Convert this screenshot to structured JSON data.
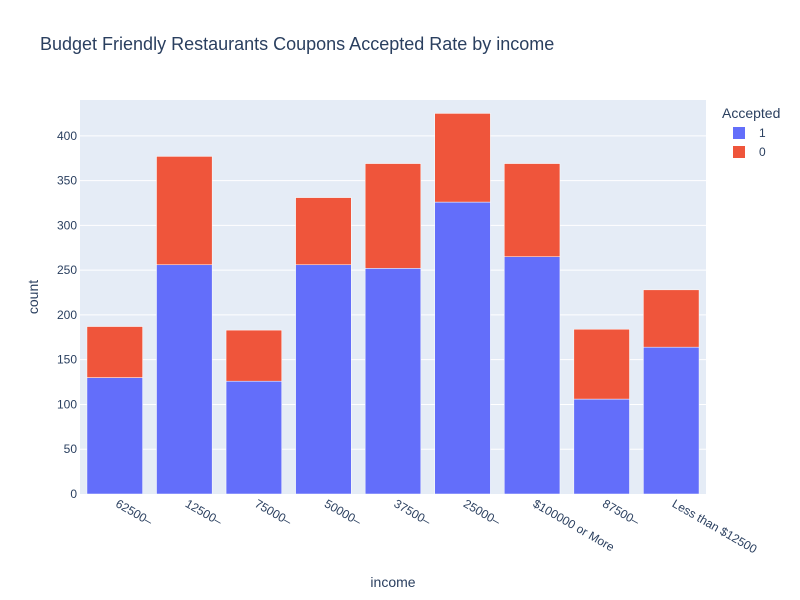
{
  "chart_data": {
    "type": "bar",
    "stacked": true,
    "title": "Budget Friendly Restaurants Coupons Accepted Rate by income",
    "xlabel": "income",
    "ylabel": "count",
    "categories": [
      "62500–",
      "12500–",
      "75000–",
      "50000–",
      "37500–",
      "25000–",
      "$100000 or More",
      "87500–",
      "Less than $12500"
    ],
    "series": [
      {
        "name": "1",
        "color": "#636efa",
        "values": [
          130,
          256,
          126,
          256,
          252,
          326,
          265,
          106,
          164
        ]
      },
      {
        "name": "0",
        "color": "#ef553b",
        "values": [
          57,
          121,
          57,
          75,
          117,
          99,
          104,
          78,
          64
        ]
      }
    ],
    "ylim": [
      0,
      440
    ],
    "yticks": [
      0,
      50,
      100,
      150,
      200,
      250,
      300,
      350,
      400
    ],
    "grid": true,
    "legend": {
      "title": "Accepted",
      "position": "top-right"
    },
    "plot_bgcolor": "#e5ecf6"
  }
}
